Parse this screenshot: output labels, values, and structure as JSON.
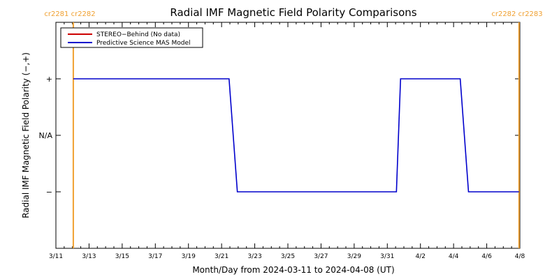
{
  "chart_data": {
    "type": "line",
    "title": "Radial IMF Magnetic Field Polarity Comparisons",
    "xlabel": "Month/Day from 2024-03-11 to 2024-04-08 (UT)",
    "ylabel": "Radial IMF Magnetic Field Polarity (−,+)",
    "x_ticks": [
      {
        "day": 0,
        "label": "3/11"
      },
      {
        "day": 2,
        "label": "3/13"
      },
      {
        "day": 4,
        "label": "3/15"
      },
      {
        "day": 6,
        "label": "3/17"
      },
      {
        "day": 8,
        "label": "3/19"
      },
      {
        "day": 10,
        "label": "3/21"
      },
      {
        "day": 12,
        "label": "3/23"
      },
      {
        "day": 14,
        "label": "3/25"
      },
      {
        "day": 16,
        "label": "3/27"
      },
      {
        "day": 18,
        "label": "3/29"
      },
      {
        "day": 20,
        "label": "3/31"
      },
      {
        "day": 22,
        "label": "4/2"
      },
      {
        "day": 24,
        "label": "4/4"
      },
      {
        "day": 26,
        "label": "4/6"
      },
      {
        "day": 28,
        "label": "4/8"
      }
    ],
    "xlim": [
      0,
      28
    ],
    "ylim": [
      -2,
      2
    ],
    "y_ticks": [
      {
        "value": 1,
        "label": "+"
      },
      {
        "value": 0,
        "label": "N/A"
      },
      {
        "value": -1,
        "label": "−"
      }
    ],
    "legend": {
      "position": "top-left",
      "entries": [
        {
          "label": "STEREO−Behind (No data)",
          "color": "#cc0000"
        },
        {
          "label": "Predictive Science MAS Model",
          "color": "#0000cc"
        }
      ]
    },
    "carrington_markers": [
      {
        "day": 1.05,
        "label": "cr2281 cr2282",
        "color": "#f0a030"
      },
      {
        "day": 27.95,
        "label": "cr2282 cr2283",
        "color": "#f0a030"
      }
    ],
    "series": [
      {
        "name": "Predictive Science MAS Model",
        "color": "#0000cc",
        "x": [
          1.05,
          10.45,
          10.7,
          10.95,
          20.55,
          20.8,
          24.4,
          24.65,
          24.9,
          27.95
        ],
        "y": [
          1,
          1,
          0,
          -1,
          -1,
          1,
          1,
          0,
          -1,
          -1
        ]
      },
      {
        "name": "STEREO−Behind (No data)",
        "color": "#cc0000",
        "x": [],
        "y": []
      }
    ]
  }
}
